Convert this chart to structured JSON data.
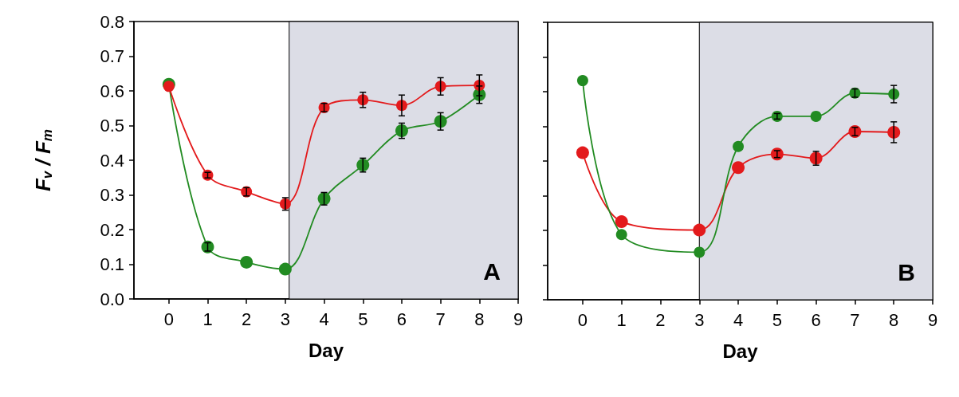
{
  "chart_data": [
    {
      "type": "line",
      "xlabel": "Day",
      "ylabel": "F$_{v}$ / F$_{m}$",
      "annotations": [
        "A"
      ],
      "xlim": [
        -0.9,
        9
      ],
      "xticks": [
        0,
        1,
        2,
        3,
        4,
        5,
        6,
        7,
        8,
        9
      ],
      "ylim": [
        0,
        0.8
      ],
      "yticks": [
        {
          "value": 0,
          "label": "0.0"
        },
        0.1,
        0.2,
        0.3,
        0.4,
        0.5,
        0.6,
        0.7,
        0.8
      ],
      "grid": false,
      "marker": "circle",
      "line_style": "solid",
      "bands": [
        {
          "axis": "x",
          "from": 3.1,
          "to": 9,
          "color": "#dcdde6"
        }
      ],
      "series": [
        {
          "color": "#e31a1c",
          "x": [
            0,
            1,
            2,
            3,
            4,
            5,
            6,
            7,
            8
          ],
          "values": [
            0.613,
            0.357,
            0.309,
            0.274,
            0.552,
            0.574,
            0.558,
            0.613,
            0.616
          ],
          "errors": [
            null,
            0.008,
            0.012,
            0.018,
            0.012,
            0.022,
            0.03,
            0.025,
            0.03
          ]
        },
        {
          "color": "#228b22",
          "x": [
            0,
            1,
            2,
            3,
            4,
            5,
            6,
            7,
            8
          ],
          "values": [
            0.619,
            0.15,
            0.106,
            0.086,
            0.289,
            0.386,
            0.485,
            0.512,
            0.589
          ],
          "errors": [
            null,
            0.012,
            null,
            null,
            0.018,
            0.02,
            0.022,
            0.025,
            0.025
          ]
        }
      ]
    },
    {
      "type": "line",
      "xlabel": "Day",
      "annotations": [
        "B"
      ],
      "xlim": [
        -0.9,
        9
      ],
      "xticks": [
        0,
        1,
        2,
        3,
        4,
        5,
        6,
        7,
        8,
        9
      ],
      "ylim": [
        0,
        0.8
      ],
      "yticks": [
        0,
        0.1,
        0.2,
        0.3,
        0.4,
        0.5,
        0.6,
        0.7,
        0.8
      ],
      "tick_labels": "x",
      "grid": false,
      "marker": "circle",
      "line_style": "solid",
      "bands": [
        {
          "axis": "x",
          "from": 3,
          "to": 9,
          "color": "#dcdde6"
        }
      ],
      "series": [
        {
          "color": "#228b22",
          "x": [
            0,
            1,
            3,
            4,
            5,
            6,
            7,
            8
          ],
          "values": [
            0.632,
            0.188,
            0.137,
            0.442,
            0.529,
            0.529,
            0.596,
            0.593
          ],
          "errors": [
            null,
            null,
            null,
            null,
            0.008,
            null,
            0.012,
            0.025
          ]
        },
        {
          "color": "#e31a1c",
          "x": [
            0,
            1,
            3,
            4,
            5,
            6,
            7,
            8
          ],
          "values": [
            0.424,
            0.225,
            0.201,
            0.381,
            0.42,
            0.408,
            0.485,
            0.483
          ],
          "errors": [
            null,
            null,
            null,
            null,
            0.01,
            0.02,
            0.012,
            0.03
          ]
        }
      ]
    }
  ]
}
